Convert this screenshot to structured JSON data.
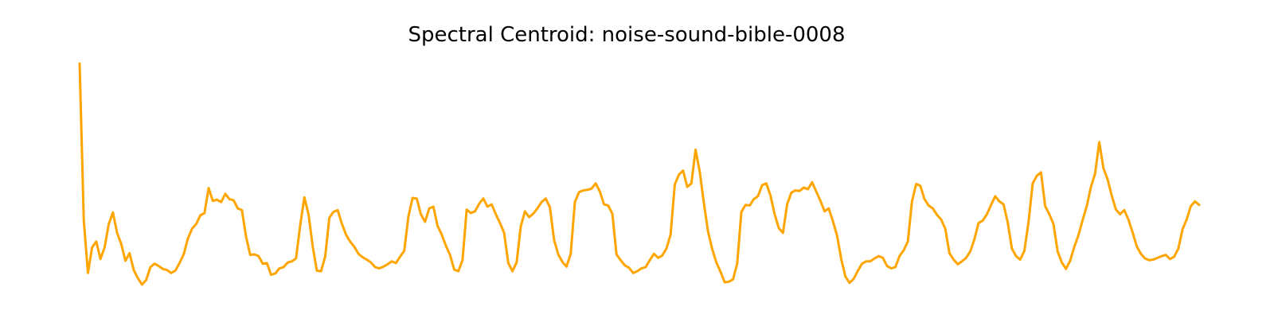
{
  "chart_data": {
    "type": "line",
    "title": "Spectral Centroid: noise-sound-bible-0008",
    "xlabel": "",
    "ylabel": "",
    "axes_visible": false,
    "grid": false,
    "legend": "none",
    "series": [
      {
        "color": "#FFA500",
        "values": [
          11.9,
          9.2,
          8.3,
          8.74,
          8.84,
          8.54,
          8.74,
          9.14,
          9.34,
          8.99,
          8.8,
          8.51,
          8.64,
          8.35,
          8.21,
          8.1,
          8.18,
          8.4,
          8.46,
          8.42,
          8.37,
          8.35,
          8.3,
          8.34,
          8.47,
          8.62,
          8.89,
          9.06,
          9.14,
          9.29,
          9.33,
          9.76,
          9.54,
          9.56,
          9.52,
          9.66,
          9.57,
          9.55,
          9.41,
          9.38,
          8.92,
          8.61,
          8.62,
          8.59,
          8.46,
          8.47,
          8.27,
          8.29,
          8.38,
          8.4,
          8.48,
          8.5,
          8.55,
          9.12,
          9.6,
          9.31,
          8.76,
          8.34,
          8.33,
          8.58,
          9.25,
          9.35,
          9.38,
          9.15,
          8.96,
          8.84,
          8.75,
          8.63,
          8.57,
          8.53,
          8.48,
          8.4,
          8.38,
          8.41,
          8.45,
          8.5,
          8.47,
          8.58,
          8.68,
          9.27,
          9.59,
          9.58,
          9.31,
          9.18,
          9.41,
          9.44,
          9.11,
          8.96,
          8.77,
          8.61,
          8.36,
          8.33,
          8.52,
          9.39,
          9.33,
          9.36,
          9.49,
          9.58,
          9.44,
          9.48,
          9.31,
          9.16,
          8.99,
          8.47,
          8.33,
          8.48,
          9.1,
          9.36,
          9.26,
          9.32,
          9.41,
          9.52,
          9.58,
          9.43,
          8.87,
          8.62,
          8.49,
          8.41,
          8.63,
          9.52,
          9.69,
          9.72,
          9.73,
          9.75,
          9.84,
          9.7,
          9.48,
          9.46,
          9.32,
          8.62,
          8.52,
          8.43,
          8.39,
          8.3,
          8.33,
          8.38,
          8.4,
          8.52,
          8.63,
          8.56,
          8.6,
          8.72,
          8.96,
          9.82,
          9.99,
          10.06,
          9.78,
          9.84,
          10.42,
          10.04,
          9.5,
          9.01,
          8.71,
          8.48,
          8.32,
          8.14,
          8.15,
          8.19,
          8.46,
          9.35,
          9.47,
          9.46,
          9.57,
          9.62,
          9.81,
          9.84,
          9.63,
          9.31,
          9.07,
          8.99,
          9.48,
          9.68,
          9.72,
          9.71,
          9.77,
          9.74,
          9.86,
          9.7,
          9.54,
          9.36,
          9.41,
          9.19,
          8.94,
          8.54,
          8.24,
          8.13,
          8.2,
          8.34,
          8.46,
          8.5,
          8.5,
          8.55,
          8.59,
          8.56,
          8.42,
          8.38,
          8.4,
          8.59,
          8.69,
          8.84,
          9.53,
          9.83,
          9.8,
          9.57,
          9.46,
          9.41,
          9.3,
          9.22,
          9.06,
          8.64,
          8.53,
          8.45,
          8.5,
          8.56,
          8.67,
          8.88,
          9.16,
          9.2,
          9.31,
          9.47,
          9.62,
          9.53,
          9.48,
          9.17,
          8.72,
          8.59,
          8.53,
          8.68,
          9.17,
          9.84,
          9.97,
          10.03,
          9.45,
          9.31,
          9.14,
          8.67,
          8.48,
          8.37,
          8.51,
          8.75,
          8.95,
          9.21,
          9.45,
          9.78,
          10.01,
          10.55,
          10.1,
          9.91,
          9.63,
          9.39,
          9.31,
          9.38,
          9.22,
          9.0,
          8.76,
          8.63,
          8.55,
          8.52,
          8.53,
          8.56,
          8.59,
          8.61,
          8.54,
          8.58,
          8.72,
          9.05,
          9.22,
          9.45,
          9.53,
          9.47
        ]
      }
    ]
  }
}
